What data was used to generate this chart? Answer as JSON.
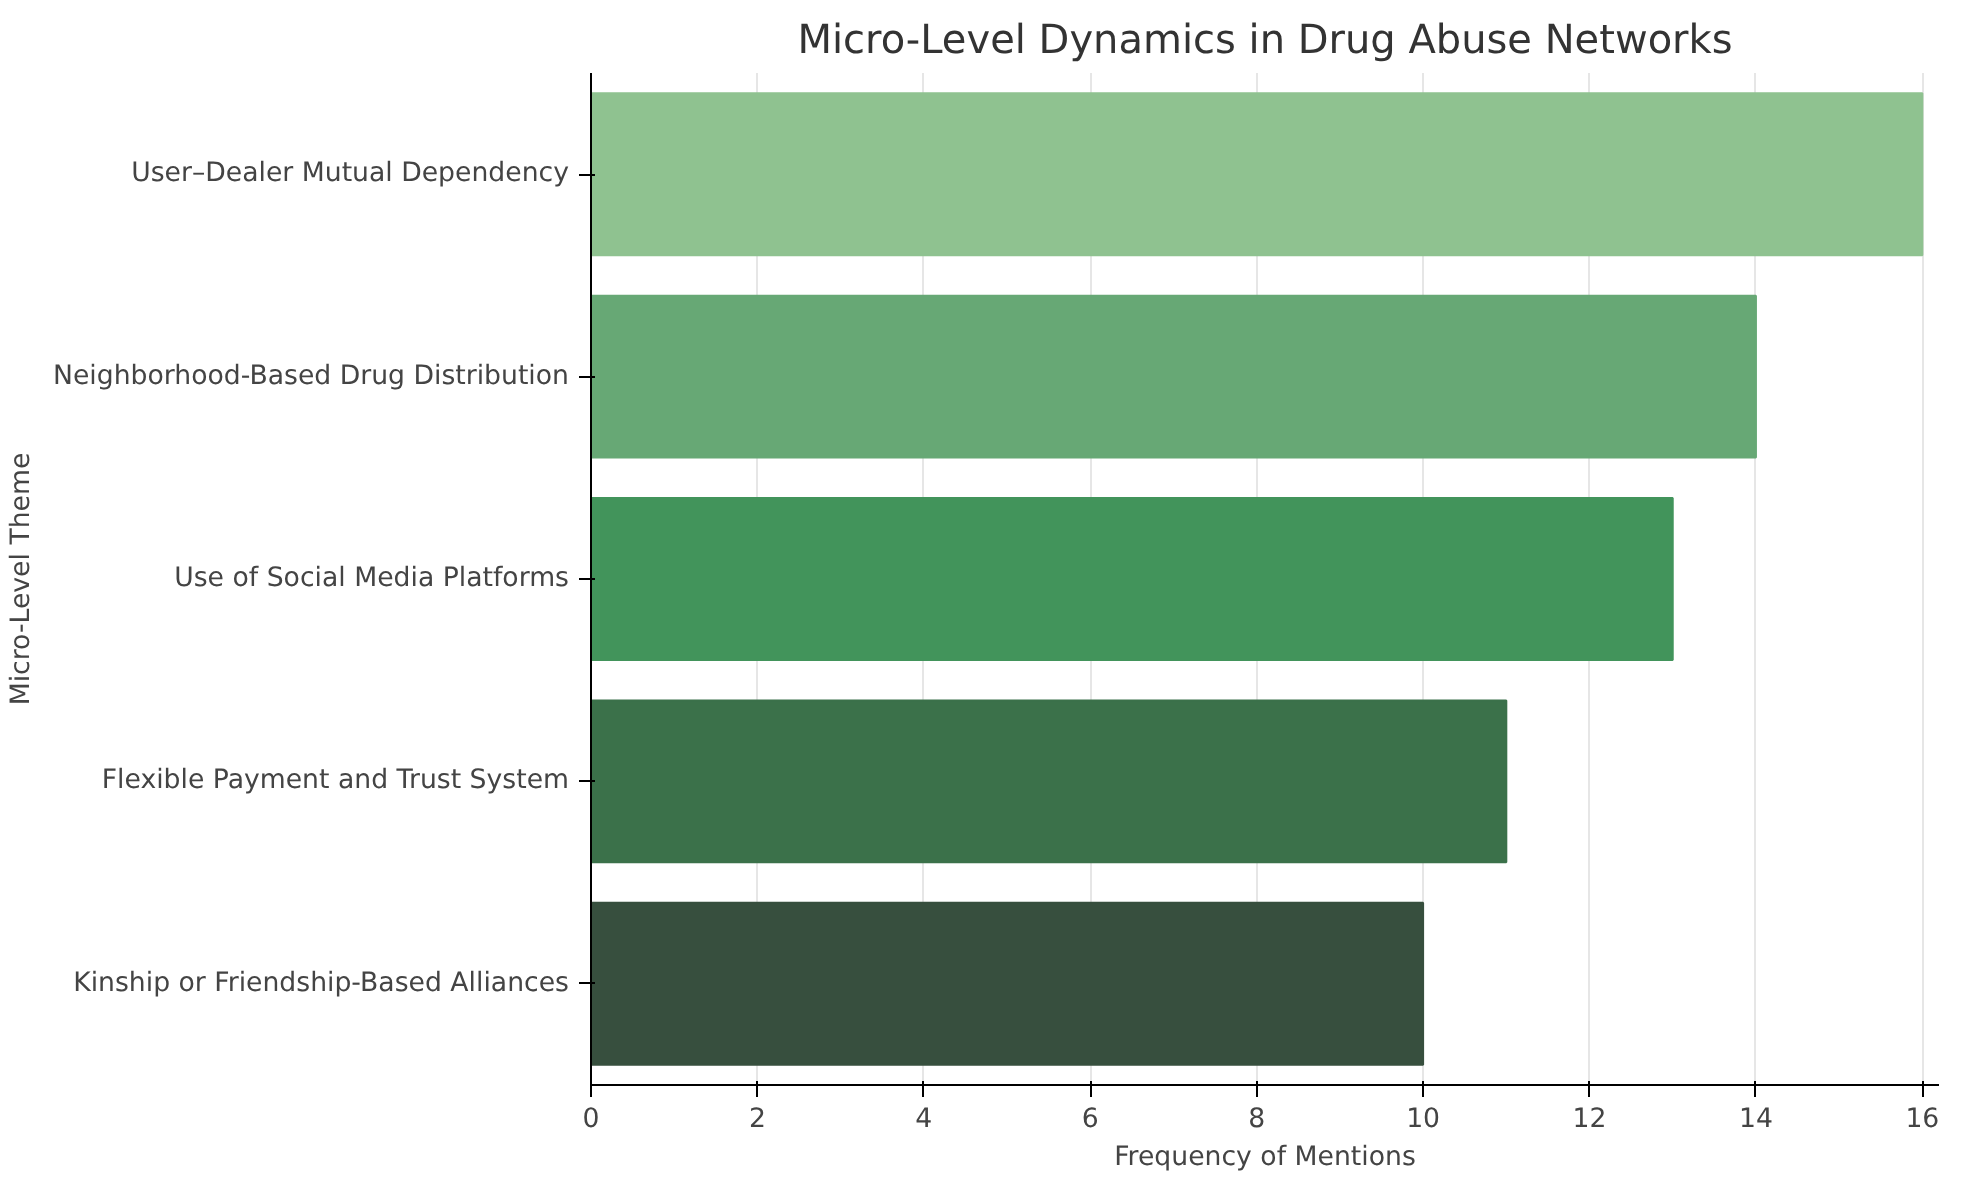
{
  "chart_data": {
    "type": "bar",
    "orientation": "horizontal",
    "title": "Micro-Level Dynamics in Drug Abuse Networks",
    "xlabel": "Frequency of Mentions",
    "ylabel": "Micro-Level Theme",
    "categories": [
      "User–Dealer Mutual Dependency",
      "Neighborhood-Based Drug Distribution",
      "Use of Social Media Platforms",
      "Flexible Payment and Trust System",
      "Kinship or Friendship-Based Alliances"
    ],
    "values": [
      16,
      14,
      13,
      11,
      10
    ],
    "colors": [
      "#8fc290",
      "#67a875",
      "#42945b",
      "#3b714a",
      "#374f3e"
    ],
    "xlim": [
      0,
      16.2
    ],
    "xticks": [
      0,
      2,
      4,
      6,
      8,
      10,
      12,
      14,
      16
    ],
    "grid": "x"
  }
}
